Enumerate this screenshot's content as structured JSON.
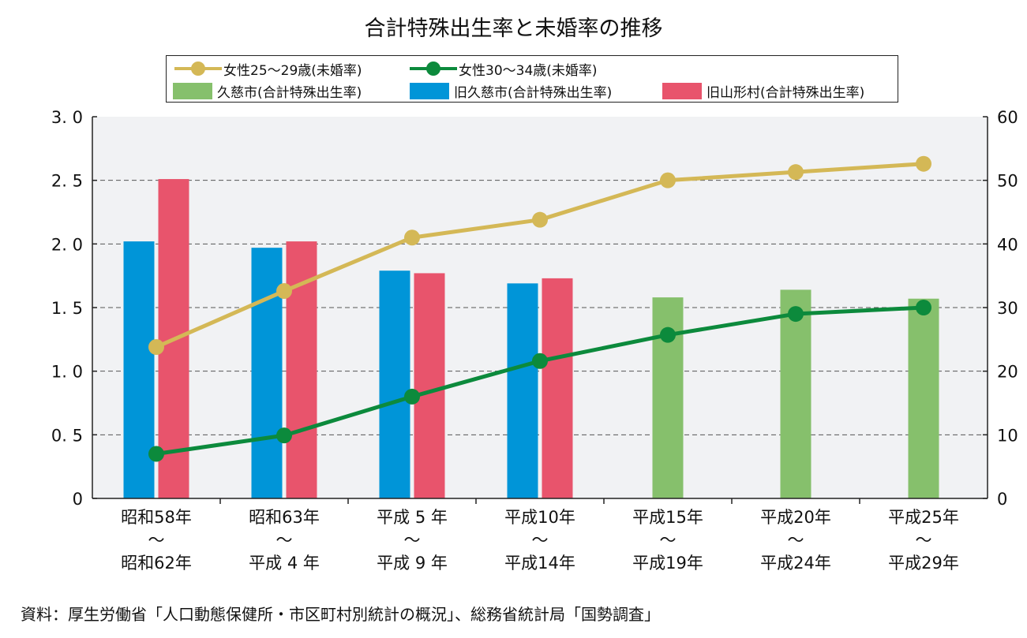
{
  "chart_data": {
    "type": "bar",
    "title": "合計特殊出生率と未婚率の推移",
    "categories": [
      [
        "昭和58年",
        "～",
        "昭和62年"
      ],
      [
        "昭和63年",
        "～",
        "平成 4 年"
      ],
      [
        "平成 5 年",
        "～",
        "平成 9 年"
      ],
      [
        "平成10年",
        "～",
        "平成14年"
      ],
      [
        "平成15年",
        "～",
        "平成19年"
      ],
      [
        "平成20年",
        "～",
        "平成24年"
      ],
      [
        "平成25年",
        "～",
        "平成29年"
      ]
    ],
    "y_left": {
      "min": 0,
      "max": 3.0,
      "ticks": [
        "0",
        "0. 5",
        "1. 0",
        "1. 5",
        "2. 0",
        "2. 5",
        "3. 0"
      ]
    },
    "y_right": {
      "min": 0,
      "max": 60,
      "ticks": [
        "0",
        "10",
        "20",
        "30",
        "40",
        "50",
        "60"
      ]
    },
    "grid": "dashed-horizontal",
    "bar_series": [
      {
        "name": "久慈市(合計特殊出生率)",
        "color": "#86c06c",
        "values": [
          null,
          null,
          null,
          null,
          1.58,
          1.64,
          1.57
        ]
      },
      {
        "name": "旧久慈市(合計特殊出生率)",
        "color": "#0095d8",
        "values": [
          2.02,
          1.97,
          1.79,
          1.69,
          null,
          null,
          null
        ]
      },
      {
        "name": "旧山形村(合計特殊出生率)",
        "color": "#e8546c",
        "values": [
          2.51,
          2.02,
          1.77,
          1.73,
          null,
          null,
          null
        ]
      }
    ],
    "line_series": [
      {
        "name": "女性25～29歳(未婚率)",
        "color": "#d4b856",
        "axis": "right",
        "values": [
          23.8,
          32.6,
          41.0,
          43.8,
          50.0,
          51.3,
          52.6
        ]
      },
      {
        "name": "女性30～34歳(未婚率)",
        "color": "#0c8a3c",
        "axis": "right",
        "values": [
          7.0,
          9.9,
          16.0,
          21.6,
          25.7,
          29.0,
          30.0
        ]
      }
    ]
  },
  "source_note": "資料：厚生労働省「人口動態保健所・市区町村別統計の概況」、総務省統計局「国勢調査」"
}
